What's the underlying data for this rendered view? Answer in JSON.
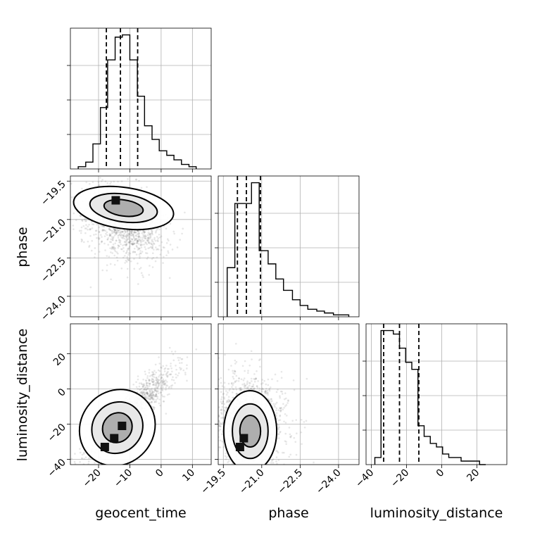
{
  "chart_data": {
    "type": "corner",
    "parameters": [
      "geocent_time",
      "phase",
      "luminosity_distance"
    ],
    "labels": {
      "geocent_time": "geocent_time",
      "phase": "phase",
      "luminosity_distance": "luminosity_distance"
    },
    "ranges": {
      "geocent_time": [
        -29,
        16
      ],
      "phase": [
        -19.3,
        -24.8
      ],
      "luminosity_distance": [
        -43,
        37
      ]
    },
    "ticks": {
      "geocent_time": [
        -20,
        -10,
        0,
        10
      ],
      "phase": [
        -24.0,
        -22.5,
        -21.0,
        -19.5
      ],
      "luminosity_distance": [
        -40,
        -20,
        0,
        20
      ]
    },
    "tick_labels": {
      "geocent_time": [
        "−20",
        "−10",
        "0",
        "10"
      ],
      "phase": [
        "−24.0",
        "−22.5",
        "−21.0",
        "−19.5"
      ],
      "luminosity_distance": [
        "−40",
        "−20",
        "0",
        "20"
      ]
    },
    "phase_y_ticks": [
      -24.0,
      -22.5,
      -21.0,
      -19.5
    ],
    "phase_y_tick_labels": [
      "−24.0",
      "−22.5",
      "−21.0",
      "−19.5"
    ],
    "grid": true,
    "quantiles": {
      "geocent_time": [
        -17.5,
        -13,
        -7.5
      ],
      "phase": [
        -20.95,
        -20.4,
        -20.05
      ],
      "luminosity_distance": [
        -33,
        -24,
        -13
      ]
    },
    "histograms": {
      "geocent_time": {
        "edges": [
          -26.5,
          -24.1,
          -21.8,
          -19.4,
          -17.1,
          -14.7,
          -12.4,
          -10.0,
          -7.6,
          -5.3,
          -2.9,
          -0.6,
          1.8,
          4.1,
          6.5,
          8.9,
          11.2
        ],
        "counts": [
          1,
          3,
          11,
          27,
          48,
          58,
          59,
          48,
          32,
          19,
          13,
          8,
          6,
          4,
          2,
          1
        ]
      },
      "phase": {
        "edges": [
          -24.4,
          -24.1,
          -23.8,
          -23.45,
          -23.15,
          -22.8,
          -22.5,
          -22.2,
          -21.85,
          -21.55,
          -21.25,
          -20.9,
          -20.6,
          -20.3,
          -19.95,
          -19.65
        ],
        "counts": [
          1,
          1,
          2,
          3,
          4,
          6,
          9,
          14,
          20,
          28,
          35,
          71,
          60,
          60,
          26
        ]
      },
      "luminosity_distance": {
        "edges": [
          -38,
          -34.5,
          -31,
          -27.5,
          -24,
          -20.5,
          -17,
          -13.5,
          -10,
          -6.5,
          -3,
          0.5,
          4,
          7.5,
          11,
          14.5,
          18,
          21.5,
          25
        ],
        "counts": [
          2,
          38,
          38,
          37,
          33,
          29,
          27,
          11,
          8,
          6,
          5,
          3,
          2,
          2,
          1,
          1,
          1,
          0
        ]
      }
    },
    "contour_pairs": [
      {
        "x": "geocent_time",
        "y": "phase"
      },
      {
        "x": "geocent_time",
        "y": "luminosity_distance"
      },
      {
        "x": "phase",
        "y": "luminosity_distance"
      }
    ],
    "colors": {
      "line": "#000000",
      "points": "#7a7a7a",
      "grid": "#b0b0b0",
      "fill_outer": "#ffffff",
      "fill_mid": "#e6e6e6",
      "fill_inner": "#a8a8a8",
      "peak": "#111111"
    }
  }
}
